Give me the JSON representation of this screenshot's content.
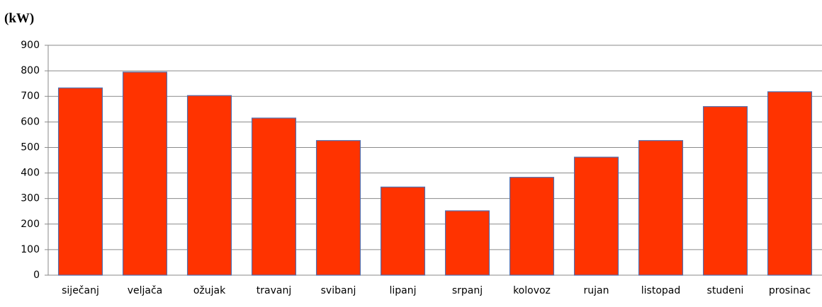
{
  "chart_data": {
    "type": "bar",
    "ylabel": "(kW)",
    "categories": [
      "siječanj",
      "veljača",
      "ožujak",
      "travanj",
      "svibanj",
      "lipanj",
      "srpanj",
      "kolovoz",
      "rujan",
      "listopad",
      "studeni",
      "prosinac"
    ],
    "values": [
      733,
      795,
      703,
      615,
      527,
      345,
      252,
      383,
      462,
      527,
      660,
      718
    ],
    "color": "#ff3300",
    "ylim": [
      0,
      900
    ],
    "yticks": [
      0,
      100,
      200,
      300,
      400,
      500,
      600,
      700,
      800,
      900
    ],
    "grid": true
  }
}
